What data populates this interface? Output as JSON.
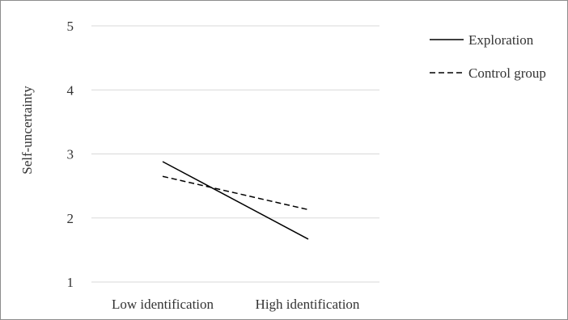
{
  "chart_data": {
    "type": "line",
    "categories": [
      "Low identification",
      "High identification"
    ],
    "series": [
      {
        "name": "Exploration",
        "values": [
          2.88,
          1.67
        ],
        "style": "solid",
        "color": "#000000"
      },
      {
        "name": "Control group",
        "values": [
          2.65,
          2.13
        ],
        "style": "dashed",
        "color": "#000000"
      }
    ],
    "ylabel": "Self-uncertainty",
    "ylim": [
      1,
      5
    ],
    "yticks": [
      "1",
      "2",
      "3",
      "4",
      "5"
    ],
    "grid": true,
    "legend_position": "top-right"
  }
}
